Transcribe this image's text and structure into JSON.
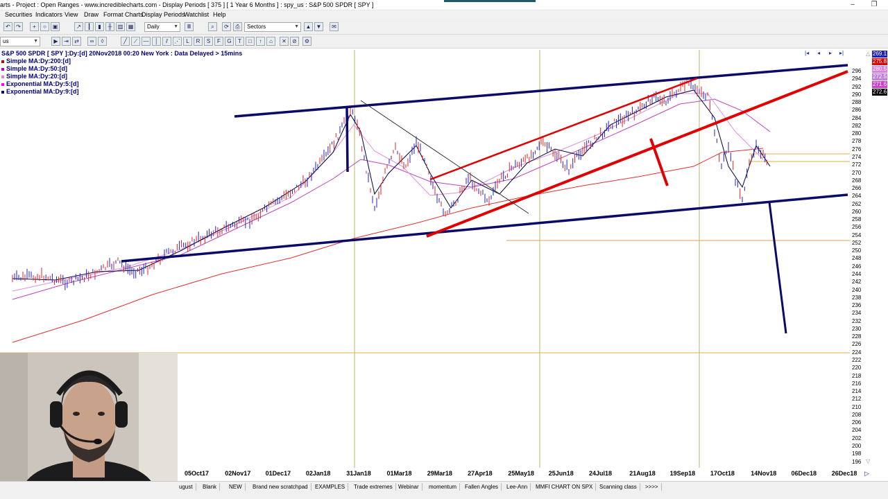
{
  "window": {
    "title": "arts - Project : Open Ranges - www.incrediblecharts.com - Display Periods  [ 375 ]  [ 1 Year 6 Months ] : spy_us : S&P 500 SPDR  [ SPY ]"
  },
  "menu": [
    "Securities",
    "Indicators",
    "View",
    "Draw",
    "Format Charts",
    "Display Periods",
    "Watchlist",
    "Help"
  ],
  "toolbar": {
    "period_select": "Daily",
    "sectors_select": "Sectors",
    "security_select": "us"
  },
  "chart": {
    "header": "S&P 500 SPDR [ SPY ]:Dy:[d]  20Nov2018 00:20 New York : Data Delayed > 15mins",
    "legend": [
      {
        "label": "Simple MA:Dy:200:[d]",
        "color": "#c00000"
      },
      {
        "label": "Simple MA:Dy:50:[d]",
        "color": "#c000c0"
      },
      {
        "label": "Simple MA:Dy:20:[d]",
        "color": "#e080e0"
      },
      {
        "label": "Exponential MA:Dy:5:[d]",
        "color": "#ff00ff"
      },
      {
        "label": "Exponential MA:Dy:9:[d]",
        "color": "#000080"
      }
    ],
    "price_boxes": [
      {
        "value": "269.1",
        "color": "#2020c0"
      },
      {
        "value": "275.8",
        "color": "#e00000"
      },
      {
        "value": "280.5",
        "color": "#e080e0"
      },
      {
        "value": "272.5",
        "color": "#c080e0"
      },
      {
        "value": "271.6",
        "color": "#d040d0"
      },
      {
        "value": "272.6",
        "color": "#000000"
      }
    ],
    "y_ticks": [
      "296",
      "294",
      "292",
      "290",
      "288",
      "286",
      "284",
      "282",
      "280",
      "278",
      "276",
      "274",
      "272",
      "270",
      "268",
      "266",
      "264",
      "262",
      "260",
      "258",
      "256",
      "254",
      "252",
      "250",
      "248",
      "246",
      "244",
      "242",
      "240",
      "238",
      "236",
      "234",
      "232",
      "230",
      "228",
      "226",
      "224",
      "222",
      "220",
      "218",
      "216",
      "214",
      "212",
      "210",
      "208",
      "206",
      "204",
      "202",
      "200",
      "198",
      "196"
    ],
    "x_ticks": [
      "05Oct17",
      "02Nov17",
      "01Dec17",
      "02Jan18",
      "31Jan18",
      "01Mar18",
      "29Mar18",
      "27Apr18",
      "25May18",
      "25Jun18",
      "24Jul18",
      "21Aug18",
      "19Sep18",
      "17Oct18",
      "14Nov18",
      "06Dec18",
      "26Dec18"
    ],
    "partial_x_label": "ugust"
  },
  "tabs": [
    "Blank",
    "NEW",
    "Brand new scratchpad",
    "EXAMPLES",
    "Trade extremes",
    "Webinar",
    "momentum",
    "Fallen Angles",
    "Lee-Ann",
    "MMFI CHART ON SPX",
    "Scanning class",
    ">>>>"
  ]
}
